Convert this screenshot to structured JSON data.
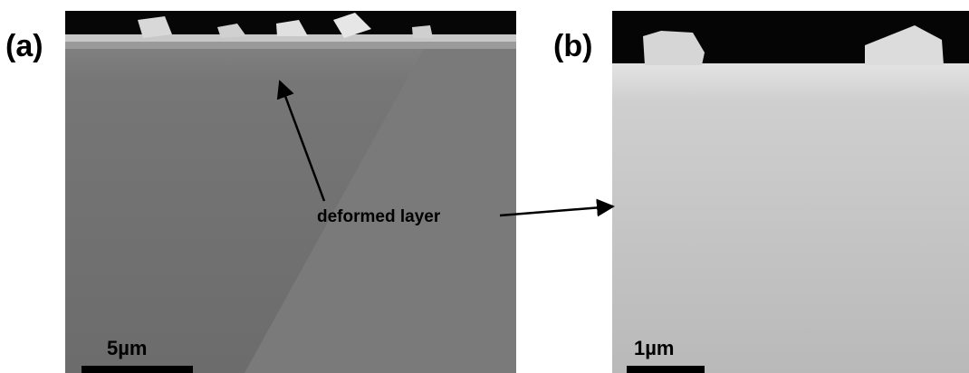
{
  "panels": [
    {
      "label": "(a)",
      "scale_bar": "5µm"
    },
    {
      "label": "(b)",
      "scale_bar": "1µm"
    }
  ],
  "annotation": "deformed layer"
}
